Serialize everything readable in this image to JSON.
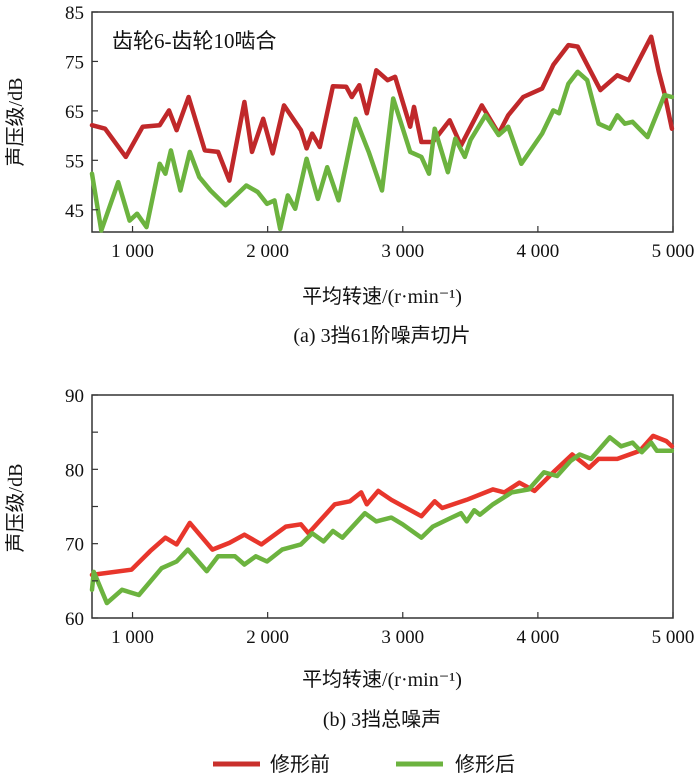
{
  "legend": {
    "items": [
      {
        "label": "修形前",
        "color": "#c9302c"
      },
      {
        "label": "修形后",
        "color": "#6cb33f"
      }
    ]
  },
  "chart_data": [
    {
      "type": "line",
      "caption": "(a) 3挡61阶噪声切片",
      "annotation": "齿轮6-齿轮10啮合",
      "xlabel": "平均转速/(r·min⁻¹)",
      "ylabel": "声压级/dB",
      "xlim": [
        700,
        5000
      ],
      "ylim": [
        40.5,
        85
      ],
      "xticks": [
        1000,
        2000,
        3000,
        4000,
        5000
      ],
      "xtick_labels": [
        "1 000",
        "2 000",
        "3 000",
        "4 000",
        "5 000"
      ],
      "yticks": [
        85,
        75,
        65,
        55,
        45
      ],
      "ytick_labels": [
        "85",
        "75",
        "65",
        "55",
        "45"
      ],
      "grid": false,
      "series": [
        {
          "name": "修形前",
          "color": "#c0282a",
          "x": [
            700,
            797,
            950,
            1075,
            1201,
            1270,
            1326,
            1415,
            1535,
            1633,
            1717,
            1828,
            1884,
            1967,
            2037,
            2121,
            2246,
            2288,
            2330,
            2386,
            2483,
            2581,
            2623,
            2678,
            2734,
            2804,
            2888,
            2943,
            3055,
            3083,
            3138,
            3222,
            3347,
            3431,
            3585,
            3710,
            3780,
            3891,
            4031,
            4114,
            4226,
            4295,
            4463,
            4588,
            4672,
            4839,
            4895,
            4937,
            4992
          ],
          "y": [
            62.1,
            61.4,
            55.7,
            61.8,
            62.1,
            65.1,
            61.1,
            67.8,
            57.0,
            56.7,
            50.9,
            66.8,
            56.7,
            63.4,
            56.4,
            66.1,
            61.1,
            57.4,
            60.4,
            57.7,
            70.0,
            69.9,
            67.8,
            70.2,
            64.5,
            73.2,
            71.2,
            71.9,
            61.8,
            65.8,
            58.7,
            58.7,
            63.1,
            58.0,
            66.1,
            60.4,
            64.1,
            67.8,
            69.5,
            74.3,
            78.3,
            78.0,
            69.2,
            72.2,
            71.2,
            80.0,
            72.9,
            68.5,
            61.4
          ]
        },
        {
          "name": "修形后",
          "color": "#6cb33f",
          "x": [
            700,
            769,
            894,
            978,
            1034,
            1103,
            1201,
            1243,
            1284,
            1354,
            1424,
            1494,
            1577,
            1689,
            1842,
            1926,
            1995,
            2051,
            2093,
            2149,
            2204,
            2288,
            2372,
            2441,
            2525,
            2651,
            2748,
            2846,
            2929,
            3055,
            3138,
            3194,
            3236,
            3334,
            3389,
            3459,
            3501,
            3612,
            3710,
            3780,
            3877,
            4031,
            4114,
            4156,
            4226,
            4295,
            4365,
            4449,
            4532,
            4588,
            4644,
            4700,
            4811,
            4937,
            4992
          ],
          "y": [
            52.3,
            40.8,
            50.6,
            42.8,
            44.2,
            41.5,
            54.3,
            52.3,
            57.0,
            48.9,
            56.7,
            51.6,
            48.9,
            45.9,
            49.9,
            48.6,
            46.2,
            46.9,
            41.1,
            47.9,
            45.2,
            55.3,
            47.2,
            53.6,
            46.9,
            63.4,
            56.7,
            48.9,
            67.5,
            56.7,
            55.7,
            52.3,
            61.4,
            52.6,
            59.4,
            55.7,
            59.1,
            64.1,
            60.1,
            61.8,
            54.3,
            60.4,
            65.1,
            64.5,
            70.5,
            72.9,
            71.2,
            62.4,
            61.4,
            64.1,
            62.4,
            62.8,
            59.7,
            68.2,
            67.8
          ]
        }
      ]
    },
    {
      "type": "line",
      "caption": "(b) 3挡总噪声",
      "xlabel": "平均转速/(r·min⁻¹)",
      "ylabel": "声压级/dB",
      "xlim": [
        700,
        5000
      ],
      "ylim": [
        60,
        90
      ],
      "xticks": [
        1000,
        2000,
        3000,
        4000,
        5000
      ],
      "xtick_labels": [
        "1 000",
        "2 000",
        "3 000",
        "4 000",
        "5 000"
      ],
      "yticks": [
        90,
        80,
        70,
        60
      ],
      "ytick_labels": [
        "90",
        "80",
        "70",
        "60"
      ],
      "minor_yticks": [
        85,
        75,
        65
      ],
      "grid": false,
      "series": [
        {
          "name": "修形前",
          "color": "#e8362c",
          "x": [
            700,
            992,
            1131,
            1243,
            1326,
            1424,
            1591,
            1717,
            1828,
            1954,
            2135,
            2246,
            2302,
            2497,
            2609,
            2692,
            2734,
            2818,
            2915,
            3138,
            3236,
            3292,
            3473,
            3668,
            3752,
            3863,
            3975,
            4114,
            4254,
            4379,
            4449,
            4588,
            4755,
            4853,
            4951,
            4992
          ],
          "y": [
            65.8,
            66.5,
            69.0,
            70.8,
            69.9,
            72.8,
            69.2,
            70.1,
            71.2,
            69.9,
            72.3,
            72.6,
            71.4,
            75.3,
            75.7,
            76.9,
            75.3,
            77.1,
            75.9,
            73.7,
            75.7,
            74.8,
            75.9,
            77.3,
            76.9,
            78.2,
            77.1,
            79.6,
            82.0,
            80.2,
            81.4,
            81.4,
            82.5,
            84.5,
            83.8,
            83.1
          ]
        },
        {
          "name": "修形后",
          "color": "#6cb33f",
          "x": [
            700,
            713,
            810,
            922,
            1047,
            1215,
            1326,
            1410,
            1549,
            1633,
            1758,
            1828,
            1912,
            1995,
            2107,
            2246,
            2330,
            2414,
            2483,
            2553,
            2720,
            2804,
            2915,
            2999,
            3138,
            3222,
            3361,
            3431,
            3473,
            3529,
            3571,
            3668,
            3807,
            3933,
            4045,
            4142,
            4240,
            4309,
            4393,
            4532,
            4616,
            4700,
            4769,
            4839,
            4881,
            4992
          ],
          "y": [
            63.8,
            66.2,
            62.0,
            63.8,
            63.1,
            66.7,
            67.6,
            69.2,
            66.3,
            68.3,
            68.3,
            67.2,
            68.3,
            67.6,
            69.2,
            69.9,
            71.4,
            70.3,
            71.7,
            70.8,
            74.1,
            73.0,
            73.5,
            72.6,
            70.8,
            72.3,
            73.5,
            74.1,
            73.0,
            74.5,
            73.9,
            75.3,
            76.9,
            77.3,
            79.6,
            79.1,
            81.1,
            82.0,
            81.4,
            84.3,
            83.1,
            83.6,
            82.3,
            83.6,
            82.5,
            82.5
          ]
        }
      ]
    }
  ]
}
